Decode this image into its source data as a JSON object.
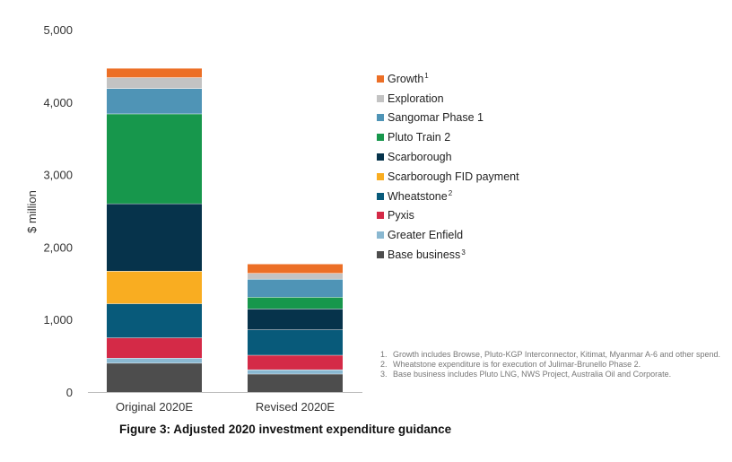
{
  "chart_data": {
    "type": "bar",
    "stacked": true,
    "title": "",
    "xlabel": "",
    "ylabel": "$ million",
    "ylim": [
      0,
      5000
    ],
    "yticks": [
      0,
      1000,
      2000,
      3000,
      4000,
      5000
    ],
    "ytick_labels": [
      "0",
      "1,000",
      "2,000",
      "3,000",
      "4,000",
      "5,000"
    ],
    "categories": [
      "Original 2020E",
      "Revised 2020E"
    ],
    "legend_position": "right",
    "series": [
      {
        "name": "Base business",
        "sup": "3",
        "color": "#4d4d4d",
        "values": [
          400,
          250
        ]
      },
      {
        "name": "Greater Enfield",
        "sup": "",
        "color": "#8ab8d1",
        "values": [
          70,
          60
        ]
      },
      {
        "name": "Pyxis",
        "sup": "",
        "color": "#d42a47",
        "values": [
          280,
          200
        ]
      },
      {
        "name": "Wheatstone",
        "sup": "2",
        "color": "#085a7a",
        "values": [
          470,
          350
        ]
      },
      {
        "name": "Scarborough FID payment",
        "sup": "",
        "color": "#f9ad21",
        "values": [
          450,
          0
        ]
      },
      {
        "name": "Scarborough",
        "sup": "",
        "color": "#06334b",
        "values": [
          930,
          290
        ]
      },
      {
        "name": "Pluto Train 2",
        "sup": "",
        "color": "#17974c",
        "values": [
          1240,
          160
        ]
      },
      {
        "name": "Sangomar Phase 1",
        "sup": "",
        "color": "#4f94b6",
        "values": [
          350,
          250
        ]
      },
      {
        "name": "Exploration",
        "sup": "",
        "color": "#c3c3c3",
        "values": [
          150,
          80
        ]
      },
      {
        "name": "Growth",
        "sup": "1",
        "color": "#ec6f26",
        "values": [
          130,
          130
        ]
      }
    ]
  },
  "footnotes": [
    {
      "num": "1.",
      "text": "Growth includes Browse, Pluto-KGP Interconnector, Kitimat, Myanmar A-6 and other spend."
    },
    {
      "num": "2.",
      "text": "Wheatstone expenditure is for execution of Julimar-Brunello Phase 2."
    },
    {
      "num": "3.",
      "text": "Base business includes Pluto LNG, NWS Project, Australia Oil and Corporate."
    }
  ],
  "caption": "Figure 3: Adjusted 2020 investment expenditure guidance"
}
